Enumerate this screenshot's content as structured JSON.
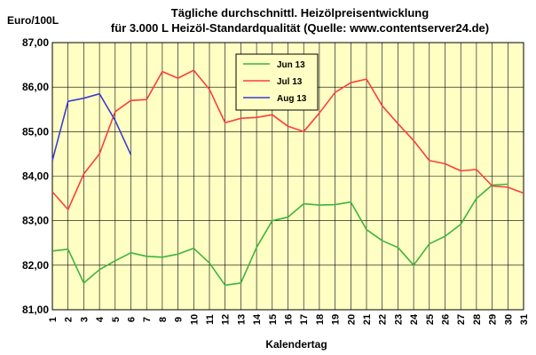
{
  "chart_data": {
    "type": "line",
    "title_line1": "Tägliche durchschnittl. Heizölpreisentwicklung",
    "title_line2": "für 3.000 L Heizöl-Standardqualität (Quelle: www.contentserver24.de)",
    "ylabel": "Euro/100L",
    "xlabel": "Kalendertag",
    "x": [
      1,
      2,
      3,
      4,
      5,
      6,
      7,
      8,
      9,
      10,
      11,
      12,
      13,
      14,
      15,
      16,
      17,
      18,
      19,
      20,
      21,
      22,
      23,
      24,
      25,
      26,
      27,
      28,
      29,
      30,
      31
    ],
    "ylim": [
      81,
      87
    ],
    "yticks": [
      "81,00",
      "82,00",
      "83,00",
      "84,00",
      "85,00",
      "86,00",
      "87,00"
    ],
    "grid": true,
    "legend_position": "top-center",
    "colors": {
      "plot_bg": "#ffffc4",
      "grid": "#000000"
    },
    "series": [
      {
        "name": "Jun 13",
        "color": "#3cb43c",
        "values": [
          82.32,
          82.36,
          81.6,
          81.9,
          82.1,
          82.28,
          82.2,
          82.18,
          82.25,
          82.38,
          82.05,
          81.55,
          81.6,
          82.4,
          83.0,
          83.08,
          83.38,
          83.35,
          83.36,
          83.42,
          82.8,
          82.55,
          82.4,
          82.0,
          82.48,
          82.65,
          82.92,
          83.5,
          83.8,
          83.82,
          null
        ]
      },
      {
        "name": "Jul 13",
        "color": "#ff3c3c",
        "values": [
          83.65,
          83.25,
          84.05,
          84.5,
          85.45,
          85.7,
          85.72,
          86.35,
          86.2,
          86.38,
          85.95,
          85.2,
          85.3,
          85.32,
          85.38,
          85.12,
          85.0,
          85.42,
          85.88,
          86.1,
          86.18,
          85.58,
          85.18,
          84.8,
          84.35,
          84.28,
          84.12,
          84.15,
          83.78,
          83.75,
          83.62
        ]
      },
      {
        "name": "Aug 13",
        "color": "#3c3cd2",
        "values": [
          84.35,
          85.68,
          85.75,
          85.85,
          85.25,
          84.48,
          null,
          null,
          null,
          null,
          null,
          null,
          null,
          null,
          null,
          null,
          null,
          null,
          null,
          null,
          null,
          null,
          null,
          null,
          null,
          null,
          null,
          null,
          null,
          null,
          null
        ]
      }
    ]
  }
}
